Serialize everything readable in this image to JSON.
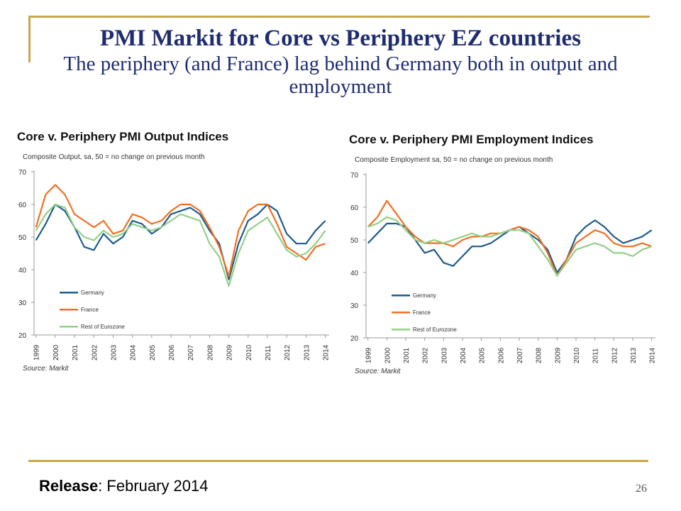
{
  "slide": {
    "title": "PMI Markit for Core vs Periphery EZ countries",
    "subtitle": "The periphery (and France) lag behind Germany both in output and employment",
    "release_label": "Release",
    "release_value": ": February 2014",
    "page_number": "26"
  },
  "colors": {
    "frame": "#c8a84a",
    "title": "#1f2d6e",
    "germany": "#1f5c8b",
    "france": "#f07022",
    "rest": "#92d08a",
    "grid": "#dddddd"
  },
  "chart_data": [
    {
      "type": "line",
      "title": "Core v. Periphery PMI Output Indices",
      "subtitle": "Composite Output, sa, 50 = no change on previous month",
      "source": "Source: Markit",
      "x_ticks": [
        "1999",
        "2000",
        "2001",
        "2002",
        "2003",
        "2004",
        "2005",
        "2006",
        "2007",
        "2008",
        "2009",
        "2010",
        "2011",
        "2012",
        "2013",
        "2014"
      ],
      "xlim": [
        1998.9,
        2014.2
      ],
      "ylim": [
        20,
        70
      ],
      "y_ticks": [
        20,
        30,
        40,
        50,
        60,
        70
      ],
      "grid": false,
      "legend_position": "bottom-left",
      "x": [
        1999.0,
        1999.5,
        2000.0,
        2000.5,
        2001.0,
        2001.5,
        2002.0,
        2002.5,
        2003.0,
        2003.5,
        2004.0,
        2004.5,
        2005.0,
        2005.5,
        2006.0,
        2006.5,
        2007.0,
        2007.5,
        2008.0,
        2008.5,
        2009.0,
        2009.5,
        2010.0,
        2010.5,
        2011.0,
        2011.5,
        2012.0,
        2012.5,
        2013.0,
        2013.5,
        2014.0
      ],
      "series": [
        {
          "name": "Germany",
          "color": "#1f5c8b",
          "values": [
            49,
            54,
            60,
            58,
            53,
            47,
            46,
            51,
            48,
            50,
            55,
            54,
            51,
            53,
            57,
            58,
            59,
            57,
            52,
            48,
            37,
            48,
            55,
            57,
            60,
            58,
            51,
            48,
            48,
            52,
            55
          ]
        },
        {
          "name": "France",
          "color": "#f07022",
          "values": [
            53,
            63,
            66,
            63,
            57,
            55,
            53,
            55,
            51,
            52,
            57,
            56,
            54,
            55,
            58,
            60,
            60,
            58,
            53,
            47,
            38,
            52,
            58,
            60,
            60,
            54,
            47,
            45,
            43,
            47,
            48
          ]
        },
        {
          "name": "Rest of Eurozone",
          "color": "#92d08a",
          "values": [
            52,
            57,
            60,
            59,
            53,
            50,
            49,
            52,
            50,
            51,
            54,
            53,
            52,
            53,
            55,
            57,
            56,
            55,
            48,
            44,
            35,
            45,
            52,
            54,
            56,
            51,
            46,
            44,
            45,
            48,
            52
          ]
        }
      ]
    },
    {
      "type": "line",
      "title": "Core v. Periphery PMI Employment Indices",
      "subtitle": "Composite Employment  sa, 50 = no change on previous month",
      "source": "Source: Markit",
      "x_ticks": [
        "1999",
        "2000",
        "2001",
        "2002",
        "2003",
        "2004",
        "2005",
        "2006",
        "2007",
        "2008",
        "2009",
        "2010",
        "2011",
        "2012",
        "2013",
        "2014"
      ],
      "xlim": [
        1998.9,
        2014.2
      ],
      "ylim": [
        20,
        70
      ],
      "y_ticks": [
        20,
        30,
        40,
        50,
        60,
        70
      ],
      "grid": false,
      "legend_position": "bottom-left",
      "x": [
        1999.0,
        1999.5,
        2000.0,
        2000.5,
        2001.0,
        2001.5,
        2002.0,
        2002.5,
        2003.0,
        2003.5,
        2004.0,
        2004.5,
        2005.0,
        2005.5,
        2006.0,
        2006.5,
        2007.0,
        2007.5,
        2008.0,
        2008.5,
        2009.0,
        2009.5,
        2010.0,
        2010.5,
        2011.0,
        2011.5,
        2012.0,
        2012.5,
        2013.0,
        2013.5,
        2014.0
      ],
      "series": [
        {
          "name": "Germany",
          "color": "#1f5c8b",
          "values": [
            49,
            52,
            55,
            55,
            54,
            50,
            46,
            47,
            43,
            42,
            45,
            48,
            48,
            49,
            51,
            53,
            54,
            52,
            50,
            47,
            40,
            44,
            51,
            54,
            56,
            54,
            51,
            49,
            50,
            51,
            53
          ]
        },
        {
          "name": "France",
          "color": "#f07022",
          "values": [
            54,
            57,
            62,
            58,
            54,
            51,
            49,
            49,
            49,
            48,
            50,
            51,
            51,
            52,
            52,
            53,
            54,
            53,
            51,
            46,
            39,
            44,
            49,
            51,
            53,
            52,
            49,
            48,
            48,
            49,
            48
          ]
        },
        {
          "name": "Rest of Eurozone",
          "color": "#92d08a",
          "values": [
            54,
            55,
            57,
            56,
            53,
            50,
            49,
            50,
            49,
            50,
            51,
            52,
            51,
            51,
            52,
            53,
            53,
            52,
            48,
            44,
            39,
            43,
            47,
            48,
            49,
            48,
            46,
            46,
            45,
            47,
            48
          ]
        }
      ]
    }
  ]
}
